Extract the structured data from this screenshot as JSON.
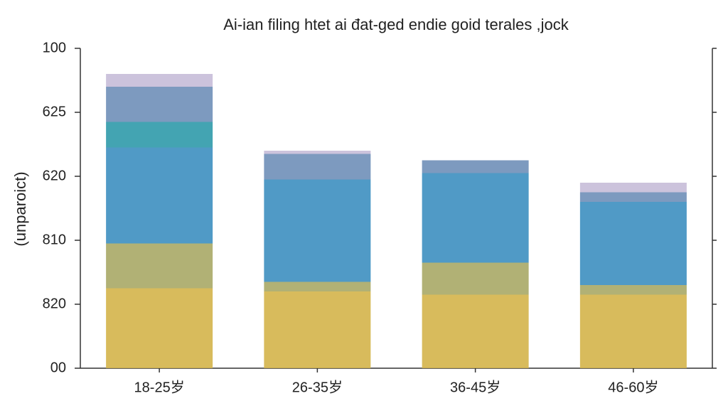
{
  "chart_data": {
    "type": "stacked_bar",
    "title": "Ai-ian filing htet ai đat-ged endie goid terales ,jock",
    "y_label": "(unparoict)",
    "categories": [
      "18-25岁",
      "26-35岁",
      "36-45岁",
      "46-60岁"
    ],
    "series": [
      {
        "color": "#d4b44a",
        "values": [
          25,
          24,
          23,
          23
        ]
      },
      {
        "color": "#a9a866",
        "values": [
          14,
          3,
          10,
          3
        ]
      },
      {
        "color": "#3d8fc0",
        "values": [
          30,
          32,
          28,
          26
        ]
      },
      {
        "color": "#2f9aaa",
        "values": [
          8,
          0,
          0,
          0
        ]
      },
      {
        "color": "#6f8fb8",
        "values": [
          11,
          8,
          4,
          3
        ]
      },
      {
        "color": "#c6bcd8",
        "values": [
          4,
          1,
          0,
          3
        ]
      }
    ],
    "ylim": [
      0,
      100
    ],
    "yticks": [
      {
        "value": 0,
        "label": "00"
      },
      {
        "value": 20,
        "label": "820"
      },
      {
        "value": 40,
        "label": "810"
      },
      {
        "value": 60,
        "label": "620"
      },
      {
        "value": 80,
        "label": "625"
      },
      100
    ]
  }
}
